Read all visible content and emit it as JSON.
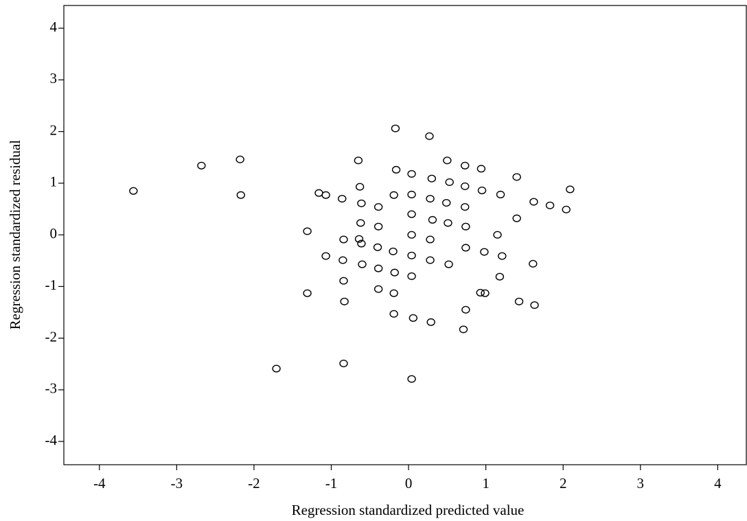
{
  "chart_data": {
    "type": "scatter",
    "x_label": "Regression standardized predicted value",
    "y_label": "Regression standardized residual",
    "xlim": [
      -4.46,
      4.37
    ],
    "ylim": [
      -4.45,
      4.44
    ],
    "xticks": [
      -4,
      -3,
      -2,
      -1,
      0,
      1,
      2,
      3,
      4
    ],
    "yticks": [
      -4,
      -3,
      -2,
      -1,
      0,
      1,
      2,
      3,
      4
    ],
    "color": "#000000",
    "x": [
      -3.56,
      -2.68,
      -2.18,
      -2.17,
      -1.71,
      -1.31,
      -1.31,
      -1.16,
      -1.07,
      -1.07,
      -0.86,
      -0.84,
      -0.85,
      -0.84,
      -0.83,
      -0.84,
      -0.65,
      -0.63,
      -0.61,
      -0.62,
      -0.64,
      -0.61,
      -0.6,
      -0.39,
      -0.39,
      -0.4,
      -0.39,
      -0.39,
      -0.19,
      -0.19,
      -0.2,
      -0.18,
      -0.19,
      -0.16,
      -0.17,
      0.04,
      0.04,
      0.04,
      0.04,
      0.04,
      0.04,
      0.06,
      0.04,
      0.27,
      0.3,
      0.28,
      0.31,
      0.28,
      0.28,
      0.29,
      0.5,
      0.53,
      0.49,
      0.51,
      0.52,
      0.73,
      0.73,
      0.73,
      0.74,
      0.74,
      0.74,
      0.71,
      0.94,
      0.95,
      0.98,
      0.93,
      0.99,
      1.19,
      1.15,
      1.21,
      1.18,
      1.4,
      1.4,
      1.43,
      1.62,
      1.61,
      1.63,
      1.83,
      2.04,
      2.09
    ],
    "values": [
      0.85,
      1.34,
      1.46,
      0.77,
      -2.59,
      0.07,
      -1.13,
      0.81,
      0.77,
      -0.41,
      0.7,
      -0.09,
      -0.49,
      -0.89,
      -1.29,
      -2.49,
      1.44,
      0.93,
      0.61,
      0.23,
      -0.08,
      -0.17,
      -0.57,
      0.54,
      0.16,
      -0.24,
      -0.65,
      -1.05,
      -1.53,
      -1.13,
      -0.32,
      -0.73,
      0.77,
      1.26,
      2.06,
      0.78,
      1.18,
      0.4,
      0.0,
      -0.4,
      -0.8,
      -1.61,
      -2.79,
      1.91,
      1.09,
      0.7,
      0.29,
      -0.09,
      -0.49,
      -1.69,
      1.44,
      1.02,
      0.62,
      0.23,
      -0.57,
      1.34,
      0.94,
      0.54,
      0.16,
      -0.25,
      -1.45,
      -1.83,
      1.28,
      0.86,
      -0.33,
      -1.12,
      -1.13,
      0.78,
      0.0,
      -0.41,
      -0.81,
      1.12,
      0.32,
      -1.29,
      0.64,
      -0.56,
      -1.36,
      0.57,
      0.49,
      0.88
    ]
  }
}
